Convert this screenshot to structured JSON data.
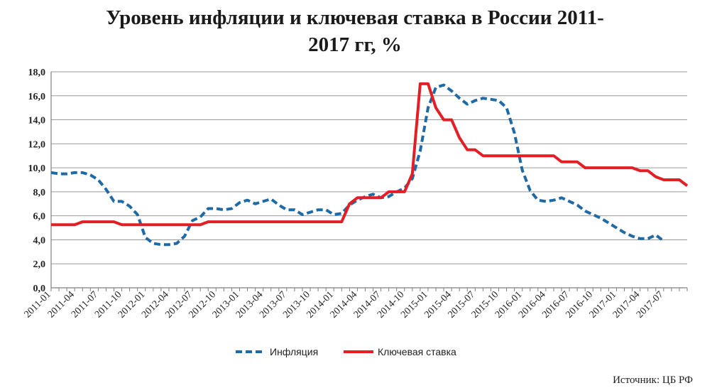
{
  "chart_data": {
    "type": "line",
    "title_lines": [
      "Уровень инфляции и ключевая ставка в России 2011-",
      "2017 гг, %"
    ],
    "source": "Источник: ЦБ РФ",
    "ylim": [
      0,
      18
    ],
    "yticks": [
      "0,0",
      "2,0",
      "4,0",
      "6,0",
      "8,0",
      "10,0",
      "12,0",
      "14,0",
      "16,0",
      "18,0"
    ],
    "x_start": "2011-01",
    "x_end": "2017-10",
    "xticks": [
      "2011-01",
      "2011-04",
      "2011-07",
      "2011-10",
      "2012-01",
      "2012-04",
      "2012-07",
      "2012-10",
      "2013-01",
      "2013-04",
      "2013-07",
      "2013-10",
      "2014-01",
      "2014-04",
      "2014-07",
      "2014-10",
      "2015-01",
      "2015-04",
      "2015-07",
      "2015-10",
      "2016-01",
      "2016-04",
      "2016-07",
      "2016-10",
      "2017-01",
      "2017-04",
      "2017-07"
    ],
    "grid": true,
    "legend_position": "bottom",
    "series": [
      {
        "name": "Инфляция",
        "color": "#1f6aa5",
        "style": "dashed",
        "x": [
          "2011-01",
          "2011-02",
          "2011-03",
          "2011-04",
          "2011-05",
          "2011-06",
          "2011-07",
          "2011-08",
          "2011-09",
          "2011-10",
          "2011-11",
          "2011-12",
          "2012-01",
          "2012-02",
          "2012-03",
          "2012-04",
          "2012-05",
          "2012-06",
          "2012-07",
          "2012-08",
          "2012-09",
          "2012-10",
          "2012-11",
          "2012-12",
          "2013-01",
          "2013-02",
          "2013-03",
          "2013-04",
          "2013-05",
          "2013-06",
          "2013-07",
          "2013-08",
          "2013-09",
          "2013-10",
          "2013-11",
          "2013-12",
          "2014-01",
          "2014-02",
          "2014-03",
          "2014-04",
          "2014-05",
          "2014-06",
          "2014-07",
          "2014-08",
          "2014-09",
          "2014-10",
          "2014-11",
          "2014-12",
          "2015-01",
          "2015-02",
          "2015-03",
          "2015-04",
          "2015-05",
          "2015-06",
          "2015-07",
          "2015-08",
          "2015-09",
          "2015-10",
          "2015-11",
          "2015-12",
          "2016-01",
          "2016-02",
          "2016-03",
          "2016-04",
          "2016-05",
          "2016-06",
          "2016-07",
          "2016-08",
          "2016-09",
          "2016-10",
          "2016-11",
          "2016-12",
          "2017-01",
          "2017-02",
          "2017-03",
          "2017-04",
          "2017-05",
          "2017-06",
          "2017-07"
        ],
        "values": [
          9.6,
          9.5,
          9.5,
          9.6,
          9.6,
          9.4,
          9.0,
          8.2,
          7.2,
          7.2,
          6.8,
          6.1,
          4.2,
          3.7,
          3.6,
          3.6,
          3.7,
          4.3,
          5.6,
          5.9,
          6.6,
          6.6,
          6.5,
          6.6,
          7.1,
          7.3,
          7.0,
          7.2,
          7.4,
          6.9,
          6.5,
          6.5,
          6.1,
          6.3,
          6.5,
          6.5,
          6.1,
          6.2,
          6.9,
          7.3,
          7.6,
          7.8,
          7.5,
          7.6,
          8.0,
          8.3,
          9.1,
          11.4,
          15.0,
          16.7,
          16.9,
          16.4,
          15.8,
          15.3,
          15.6,
          15.8,
          15.7,
          15.6,
          15.0,
          12.9,
          9.8,
          8.1,
          7.3,
          7.2,
          7.3,
          7.5,
          7.2,
          6.9,
          6.4,
          6.1,
          5.8,
          5.4,
          5.0,
          4.6,
          4.3,
          4.1,
          4.1,
          4.4,
          3.9
        ]
      },
      {
        "name": "Ключевая ставка",
        "color": "#e31e24",
        "style": "solid",
        "x": [
          "2011-01",
          "2011-02",
          "2011-03",
          "2011-04",
          "2011-05",
          "2011-06",
          "2011-07",
          "2011-08",
          "2011-09",
          "2011-10",
          "2011-11",
          "2011-12",
          "2012-01",
          "2012-02",
          "2012-03",
          "2012-04",
          "2012-05",
          "2012-06",
          "2012-07",
          "2012-08",
          "2012-09",
          "2012-10",
          "2012-11",
          "2012-12",
          "2013-01",
          "2013-02",
          "2013-03",
          "2013-04",
          "2013-05",
          "2013-06",
          "2013-07",
          "2013-08",
          "2013-09",
          "2013-10",
          "2013-11",
          "2013-12",
          "2014-01",
          "2014-02",
          "2014-03",
          "2014-04",
          "2014-05",
          "2014-06",
          "2014-07",
          "2014-08",
          "2014-09",
          "2014-10",
          "2014-11",
          "2014-12",
          "2015-01",
          "2015-02",
          "2015-03",
          "2015-04",
          "2015-05",
          "2015-06",
          "2015-07",
          "2015-08",
          "2015-09",
          "2015-10",
          "2015-11",
          "2015-12",
          "2016-01",
          "2016-02",
          "2016-03",
          "2016-04",
          "2016-05",
          "2016-06",
          "2016-07",
          "2016-08",
          "2016-09",
          "2016-10",
          "2016-11",
          "2016-12",
          "2017-01",
          "2017-02",
          "2017-03",
          "2017-04",
          "2017-05",
          "2017-06",
          "2017-07",
          "2017-08",
          "2017-09",
          "2017-10"
        ],
        "values": [
          5.25,
          5.25,
          5.25,
          5.25,
          5.5,
          5.5,
          5.5,
          5.5,
          5.5,
          5.25,
          5.25,
          5.25,
          5.25,
          5.25,
          5.25,
          5.25,
          5.25,
          5.25,
          5.25,
          5.25,
          5.5,
          5.5,
          5.5,
          5.5,
          5.5,
          5.5,
          5.5,
          5.5,
          5.5,
          5.5,
          5.5,
          5.5,
          5.5,
          5.5,
          5.5,
          5.5,
          5.5,
          5.5,
          7.0,
          7.5,
          7.5,
          7.5,
          7.5,
          8.0,
          8.0,
          8.0,
          9.5,
          17.0,
          17.0,
          15.0,
          14.0,
          14.0,
          12.5,
          11.5,
          11.5,
          11.0,
          11.0,
          11.0,
          11.0,
          11.0,
          11.0,
          11.0,
          11.0,
          11.0,
          11.0,
          10.5,
          10.5,
          10.5,
          10.0,
          10.0,
          10.0,
          10.0,
          10.0,
          10.0,
          10.0,
          9.75,
          9.75,
          9.25,
          9.0,
          9.0,
          9.0,
          8.5
        ]
      }
    ]
  }
}
